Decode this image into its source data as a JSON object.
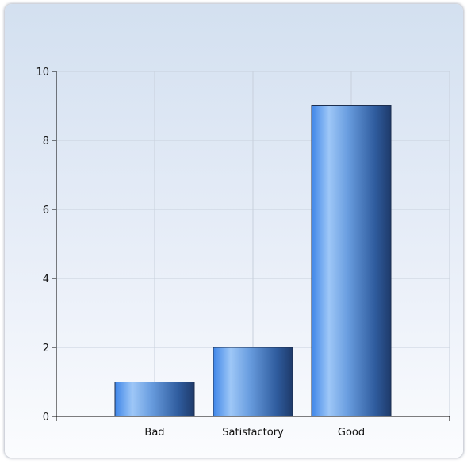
{
  "chart_data": {
    "type": "bar",
    "categories": [
      "Bad",
      "Satisfactory",
      "Good"
    ],
    "values": [
      1,
      2,
      9
    ],
    "title": "",
    "xlabel": "",
    "ylabel": "",
    "ylim": [
      0,
      10
    ],
    "yticks": [
      0,
      2,
      4,
      6,
      8,
      10
    ],
    "grid": true,
    "legend": "none",
    "colors": {
      "bar_light": "#9ec7f7",
      "bar_mid": "#4f8ee8",
      "bar_dark": "#1e3a6a",
      "grid": "#c8d0dc",
      "axis": "#000000"
    }
  }
}
